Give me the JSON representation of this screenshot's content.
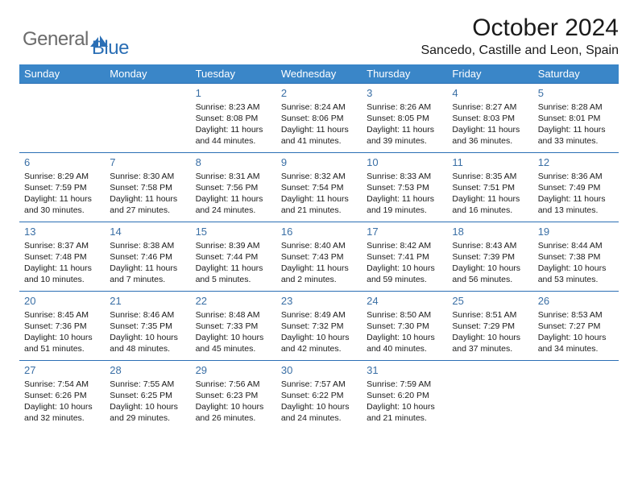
{
  "logo": {
    "general": "General",
    "blue": "Blue"
  },
  "title": "October 2024",
  "location": "Sancedo, Castille and Leon, Spain",
  "weekdays": [
    "Sunday",
    "Monday",
    "Tuesday",
    "Wednesday",
    "Thursday",
    "Friday",
    "Saturday"
  ],
  "theme": {
    "header_bg": "#3a86c8",
    "header_fg": "#ffffff",
    "row_border": "#2b6fb5",
    "daynum_color": "#3a6fa5",
    "text_color": "#1a1a1a",
    "logo_gray": "#6b6b6b",
    "logo_blue": "#2b6fb5"
  },
  "blanks_before": 2,
  "days": [
    {
      "n": "1",
      "sunrise": "8:23 AM",
      "sunset": "8:08 PM",
      "daylight": "11 hours and 44 minutes."
    },
    {
      "n": "2",
      "sunrise": "8:24 AM",
      "sunset": "8:06 PM",
      "daylight": "11 hours and 41 minutes."
    },
    {
      "n": "3",
      "sunrise": "8:26 AM",
      "sunset": "8:05 PM",
      "daylight": "11 hours and 39 minutes."
    },
    {
      "n": "4",
      "sunrise": "8:27 AM",
      "sunset": "8:03 PM",
      "daylight": "11 hours and 36 minutes."
    },
    {
      "n": "5",
      "sunrise": "8:28 AM",
      "sunset": "8:01 PM",
      "daylight": "11 hours and 33 minutes."
    },
    {
      "n": "6",
      "sunrise": "8:29 AM",
      "sunset": "7:59 PM",
      "daylight": "11 hours and 30 minutes."
    },
    {
      "n": "7",
      "sunrise": "8:30 AM",
      "sunset": "7:58 PM",
      "daylight": "11 hours and 27 minutes."
    },
    {
      "n": "8",
      "sunrise": "8:31 AM",
      "sunset": "7:56 PM",
      "daylight": "11 hours and 24 minutes."
    },
    {
      "n": "9",
      "sunrise": "8:32 AM",
      "sunset": "7:54 PM",
      "daylight": "11 hours and 21 minutes."
    },
    {
      "n": "10",
      "sunrise": "8:33 AM",
      "sunset": "7:53 PM",
      "daylight": "11 hours and 19 minutes."
    },
    {
      "n": "11",
      "sunrise": "8:35 AM",
      "sunset": "7:51 PM",
      "daylight": "11 hours and 16 minutes."
    },
    {
      "n": "12",
      "sunrise": "8:36 AM",
      "sunset": "7:49 PM",
      "daylight": "11 hours and 13 minutes."
    },
    {
      "n": "13",
      "sunrise": "8:37 AM",
      "sunset": "7:48 PM",
      "daylight": "11 hours and 10 minutes."
    },
    {
      "n": "14",
      "sunrise": "8:38 AM",
      "sunset": "7:46 PM",
      "daylight": "11 hours and 7 minutes."
    },
    {
      "n": "15",
      "sunrise": "8:39 AM",
      "sunset": "7:44 PM",
      "daylight": "11 hours and 5 minutes."
    },
    {
      "n": "16",
      "sunrise": "8:40 AM",
      "sunset": "7:43 PM",
      "daylight": "11 hours and 2 minutes."
    },
    {
      "n": "17",
      "sunrise": "8:42 AM",
      "sunset": "7:41 PM",
      "daylight": "10 hours and 59 minutes."
    },
    {
      "n": "18",
      "sunrise": "8:43 AM",
      "sunset": "7:39 PM",
      "daylight": "10 hours and 56 minutes."
    },
    {
      "n": "19",
      "sunrise": "8:44 AM",
      "sunset": "7:38 PM",
      "daylight": "10 hours and 53 minutes."
    },
    {
      "n": "20",
      "sunrise": "8:45 AM",
      "sunset": "7:36 PM",
      "daylight": "10 hours and 51 minutes."
    },
    {
      "n": "21",
      "sunrise": "8:46 AM",
      "sunset": "7:35 PM",
      "daylight": "10 hours and 48 minutes."
    },
    {
      "n": "22",
      "sunrise": "8:48 AM",
      "sunset": "7:33 PM",
      "daylight": "10 hours and 45 minutes."
    },
    {
      "n": "23",
      "sunrise": "8:49 AM",
      "sunset": "7:32 PM",
      "daylight": "10 hours and 42 minutes."
    },
    {
      "n": "24",
      "sunrise": "8:50 AM",
      "sunset": "7:30 PM",
      "daylight": "10 hours and 40 minutes."
    },
    {
      "n": "25",
      "sunrise": "8:51 AM",
      "sunset": "7:29 PM",
      "daylight": "10 hours and 37 minutes."
    },
    {
      "n": "26",
      "sunrise": "8:53 AM",
      "sunset": "7:27 PM",
      "daylight": "10 hours and 34 minutes."
    },
    {
      "n": "27",
      "sunrise": "7:54 AM",
      "sunset": "6:26 PM",
      "daylight": "10 hours and 32 minutes."
    },
    {
      "n": "28",
      "sunrise": "7:55 AM",
      "sunset": "6:25 PM",
      "daylight": "10 hours and 29 minutes."
    },
    {
      "n": "29",
      "sunrise": "7:56 AM",
      "sunset": "6:23 PM",
      "daylight": "10 hours and 26 minutes."
    },
    {
      "n": "30",
      "sunrise": "7:57 AM",
      "sunset": "6:22 PM",
      "daylight": "10 hours and 24 minutes."
    },
    {
      "n": "31",
      "sunrise": "7:59 AM",
      "sunset": "6:20 PM",
      "daylight": "10 hours and 21 minutes."
    }
  ],
  "labels": {
    "sunrise": "Sunrise: ",
    "sunset": "Sunset: ",
    "daylight": "Daylight: "
  }
}
